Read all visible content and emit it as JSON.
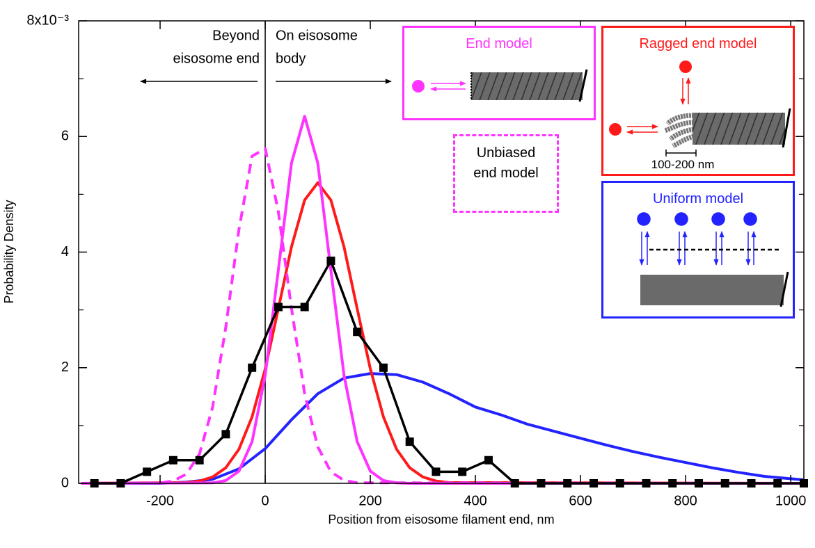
{
  "chart_data": {
    "type": "line",
    "xlabel": "Position from eisosome filament end, nm",
    "ylabel": "Probability Density",
    "xlim": [
      -355,
      1025
    ],
    "ylim": [
      0,
      8
    ],
    "xticks": [
      -200,
      0,
      200,
      400,
      600,
      800,
      1000
    ],
    "yticks": [
      0,
      2,
      4,
      6,
      {
        "value": 8,
        "label": "8x10⁻³"
      }
    ],
    "yminor_ticks": [
      1,
      3,
      5,
      7
    ],
    "reference_line_x": 0,
    "annotations": {
      "beyond": [
        "Beyond",
        "eisosome end"
      ],
      "on_body": [
        "On eisosome",
        "body"
      ],
      "ragged_scale": "100-200 nm"
    },
    "series": [
      {
        "name": "Uniform model",
        "color": "#2323ff",
        "dash": false,
        "markers": false,
        "x": [
          -350,
          -200,
          -150,
          -100,
          -50,
          0,
          50,
          100,
          150,
          200,
          250,
          300,
          350,
          400,
          450,
          500,
          550,
          600,
          650,
          700,
          750,
          800,
          850,
          900,
          950,
          1000,
          1025
        ],
        "values": [
          0,
          0,
          0.02,
          0.07,
          0.25,
          0.6,
          1.1,
          1.55,
          1.82,
          1.9,
          1.88,
          1.75,
          1.55,
          1.32,
          1.18,
          1.02,
          0.9,
          0.78,
          0.66,
          0.55,
          0.45,
          0.36,
          0.27,
          0.19,
          0.12,
          0.08,
          0.06
        ]
      },
      {
        "name": "Ragged end model",
        "color": "#ff1a1a",
        "dash": false,
        "markers": false,
        "x": [
          -350,
          -150,
          -125,
          -100,
          -75,
          -50,
          -25,
          0,
          25,
          50,
          75,
          100,
          125,
          150,
          175,
          200,
          225,
          250,
          275,
          300,
          325,
          350,
          1025
        ],
        "values": [
          0,
          0.013,
          0.04,
          0.11,
          0.27,
          0.59,
          1.15,
          1.98,
          3.02,
          4.09,
          4.9,
          5.2,
          4.9,
          4.09,
          3.02,
          1.98,
          1.15,
          0.59,
          0.27,
          0.11,
          0.04,
          0.013,
          0
        ]
      },
      {
        "name": "End model",
        "color": "#ff33ff",
        "dash": false,
        "markers": false,
        "x": [
          -350,
          -100,
          -75,
          -50,
          -25,
          0,
          25,
          50,
          75,
          100,
          125,
          150,
          175,
          200,
          225,
          250,
          275,
          1025
        ],
        "values": [
          0,
          0.008,
          0.048,
          0.21,
          0.72,
          1.87,
          3.69,
          5.54,
          6.35,
          5.54,
          3.69,
          1.87,
          0.72,
          0.21,
          0.048,
          0.008,
          0,
          0
        ]
      },
      {
        "name": "Unbiased end model",
        "color": "#ff33ff",
        "dash": true,
        "markers": false,
        "x": [
          -350,
          -200,
          -175,
          -150,
          -125,
          -100,
          -75,
          -50,
          -25,
          0,
          25,
          50,
          75,
          100,
          125,
          150,
          175,
          1025
        ],
        "values": [
          0,
          0.007,
          0.04,
          0.16,
          0.51,
          1.32,
          2.7,
          4.39,
          5.66,
          5.79,
          4.7,
          3.03,
          1.55,
          0.63,
          0.2,
          0.05,
          0.01,
          0
        ]
      },
      {
        "color": "#000000",
        "dash": false,
        "markers": true,
        "x": [
          -325,
          -275,
          -225,
          -175,
          -125,
          -75,
          -25,
          25,
          75,
          125,
          175,
          225,
          275,
          325,
          375,
          425,
          475,
          525,
          575,
          625,
          675,
          725,
          775,
          825,
          875,
          925,
          975,
          1025
        ],
        "values": [
          0,
          0,
          0.2,
          0.4,
          0.4,
          0.85,
          2.0,
          3.05,
          3.05,
          3.85,
          2.62,
          2.0,
          0.72,
          0.2,
          0.2,
          0.4,
          0,
          0,
          0,
          0,
          0,
          0,
          0,
          0,
          0,
          0,
          0,
          0
        ]
      }
    ]
  }
}
